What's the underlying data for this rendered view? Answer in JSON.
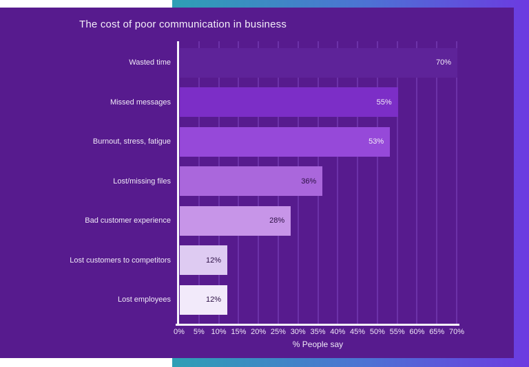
{
  "page": {
    "background_color": "#ffffff",
    "panel_color": "#571B8E",
    "accent_gradient": [
      "#2E9FB5",
      "#4D72D4",
      "#6C3AE1"
    ]
  },
  "chart_data": {
    "type": "bar",
    "orientation": "horizontal",
    "title": "The cost of poor communication in business",
    "xlabel": "% People say",
    "xlim": [
      0,
      70
    ],
    "grid": true,
    "tick_labels": [
      "0%",
      "5%",
      "10%",
      "15%",
      "20%",
      "25%",
      "30%",
      "35%",
      "40%",
      "45%",
      "50%",
      "55%",
      "60%",
      "65%",
      "70%"
    ],
    "categories": [
      "Wasted time",
      "Missed messages",
      "Burnout, stress, fatigue",
      "Lost/missing files",
      "Bad customer experience",
      "Lost customers to competitors",
      "Lost employees"
    ],
    "values": [
      70,
      55,
      53,
      36,
      28,
      12,
      12
    ],
    "bars": [
      {
        "category": "Wasted time",
        "value": 70,
        "value_label": "70%",
        "bar_color": "#5E2399",
        "label_color": "#F2ECF8"
      },
      {
        "category": "Missed messages",
        "value": 55,
        "value_label": "55%",
        "bar_color": "#7C2EC7",
        "label_color": "#F2ECF8"
      },
      {
        "category": "Burnout, stress, fatigue",
        "value": 53,
        "value_label": "53%",
        "bar_color": "#9649D9",
        "label_color": "#F2ECF8"
      },
      {
        "category": "Lost/missing files",
        "value": 36,
        "value_label": "36%",
        "bar_color": "#AA67DC",
        "label_color": "#2A0E42"
      },
      {
        "category": "Bad customer experience",
        "value": 28,
        "value_label": "28%",
        "bar_color": "#C795E8",
        "label_color": "#2A0E42"
      },
      {
        "category": "Lost customers to competitors",
        "value": 12,
        "value_label": "12%",
        "bar_color": "#DECBF2",
        "label_color": "#2A0E42"
      },
      {
        "category": "Lost employees",
        "value": 12,
        "value_label": "12%",
        "bar_color": "#F2EAFA",
        "label_color": "#2A0E42"
      }
    ],
    "axis_color": "#F8F5FC",
    "gridline_color": "#6C32A8",
    "text_color": "#EFE9F7"
  }
}
